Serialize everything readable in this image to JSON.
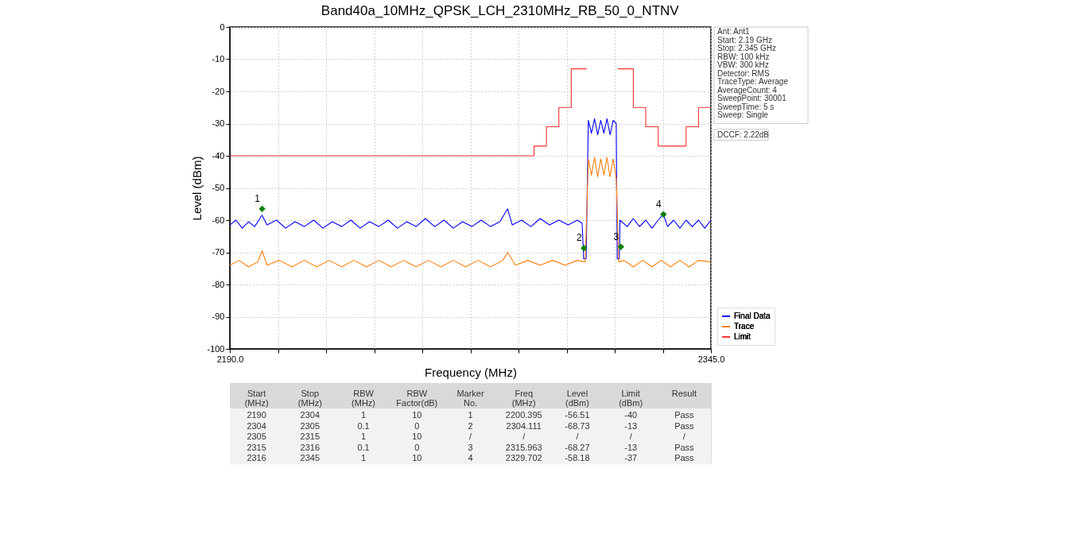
{
  "chart_data": [
    {
      "type": "line",
      "title": "Band40a_10MHz_QPSK_LCH_2310MHz_RB_50_0_NTNV",
      "xlabel": "Frequency (MHz)",
      "ylabel": "Level (dBm)",
      "xlim": [
        2190,
        2345
      ],
      "ylim": [
        -100,
        0
      ],
      "xticks": [
        {
          "value": 2190,
          "label": "2190.0"
        },
        {
          "value": 2205.5,
          "label": null
        },
        {
          "value": 2221,
          "label": null
        },
        {
          "value": 2236.5,
          "label": null
        },
        {
          "value": 2252,
          "label": null
        },
        {
          "value": 2267.5,
          "label": null
        },
        {
          "value": 2283,
          "label": null
        },
        {
          "value": 2298.5,
          "label": null
        },
        {
          "value": 2314,
          "label": null
        },
        {
          "value": 2329.5,
          "label": null
        },
        {
          "value": 2345,
          "label": "2345.0"
        }
      ],
      "yticks": [
        -100,
        -90,
        -80,
        -70,
        -60,
        -50,
        -40,
        -30,
        -20,
        -10,
        0
      ],
      "grid": true,
      "legend": "bottom right",
      "series": [
        {
          "name": "Final Data",
          "color": "#0000ff",
          "x": [
            2190,
            2192,
            2194,
            2196,
            2198,
            2200,
            2200.4,
            2202,
            2205,
            2208,
            2211,
            2214,
            2217,
            2220,
            2223,
            2226,
            2229,
            2232,
            2235,
            2238,
            2241,
            2244,
            2247,
            2250,
            2253,
            2256,
            2259,
            2262,
            2265,
            2268,
            2271,
            2274,
            2277,
            2279.5,
            2281,
            2284,
            2287,
            2290,
            2293,
            2296,
            2299,
            2302,
            2303.5,
            2304,
            2304.8,
            2305.5,
            2306.5,
            2307.5,
            2308.5,
            2309.5,
            2310.5,
            2311.5,
            2312.5,
            2313.5,
            2314.5,
            2314.8,
            2315.5,
            2315.7,
            2318,
            2320,
            2322,
            2324,
            2326,
            2328,
            2329.7,
            2331,
            2333,
            2335,
            2337,
            2339,
            2341,
            2343,
            2345
          ],
          "values": [
            -61.5,
            -60,
            -62.5,
            -60.5,
            -62,
            -59,
            -58.5,
            -61.5,
            -60,
            -62.5,
            -60.5,
            -62,
            -60,
            -62.5,
            -60.5,
            -62,
            -60,
            -62.5,
            -60.5,
            -62,
            -60,
            -62.5,
            -60.5,
            -62,
            -59.5,
            -62,
            -60,
            -62.5,
            -60.5,
            -62,
            -60,
            -62,
            -60.5,
            -56.5,
            -61.5,
            -60,
            -62,
            -59.5,
            -61.5,
            -60,
            -61.5,
            -60,
            -61,
            -72,
            -72,
            -29,
            -33,
            -28.5,
            -33.5,
            -29,
            -33,
            -28.5,
            -33.5,
            -29,
            -30,
            -72,
            -72,
            -60,
            -62,
            -59.5,
            -62,
            -60,
            -62.5,
            -60,
            -58.2,
            -62,
            -60,
            -62.5,
            -60,
            -62,
            -60,
            -62.5,
            -60
          ]
        },
        {
          "name": "Trace",
          "color": "#ff7f0e",
          "x": [
            2190,
            2193,
            2196,
            2199,
            2200.4,
            2202,
            2206,
            2210,
            2214,
            2218,
            2222,
            2226,
            2230,
            2234,
            2238,
            2242,
            2246,
            2250,
            2254,
            2258,
            2262,
            2266,
            2270,
            2274,
            2278,
            2279.5,
            2282,
            2286,
            2290,
            2294,
            2298,
            2302,
            2304.5,
            2305.5,
            2306.5,
            2307.5,
            2308.5,
            2309.5,
            2310.5,
            2311.5,
            2312.5,
            2313.5,
            2314.5,
            2315.3,
            2317,
            2320,
            2323,
            2326,
            2329,
            2332,
            2335,
            2338,
            2341,
            2345
          ],
          "values": [
            -74,
            -72.5,
            -74.5,
            -73,
            -69.5,
            -74,
            -72.5,
            -74.5,
            -72.5,
            -74.5,
            -72.5,
            -74.5,
            -72.5,
            -74.5,
            -72.5,
            -74.5,
            -72.5,
            -74.5,
            -72.5,
            -74.5,
            -72.5,
            -74.5,
            -72.5,
            -74.5,
            -72.5,
            -70,
            -74,
            -72.5,
            -74,
            -72.5,
            -74,
            -72.5,
            -73,
            -41,
            -46,
            -40.5,
            -46.5,
            -41,
            -46,
            -40.5,
            -46.5,
            -41,
            -47,
            -73,
            -72.5,
            -74.5,
            -72.5,
            -74.5,
            -72.5,
            -74.5,
            -72.5,
            -74.5,
            -72.5,
            -73
          ]
        },
        {
          "name": "Limit",
          "color": "#ff3333",
          "x": [
            2190,
            2288,
            2288,
            2292,
            2292,
            2296,
            2296,
            2300,
            2300,
            2305,
            2310,
            2315,
            2320,
            2320,
            2324,
            2324,
            2328,
            2328,
            2337,
            2337,
            2341,
            2341,
            2345
          ],
          "values": [
            -40,
            -40,
            -37,
            -37,
            -31,
            -31,
            -25,
            -25,
            -13,
            -13,
            null,
            -13,
            -13,
            -25,
            -25,
            -31,
            -31,
            -37,
            -37,
            -31,
            -31,
            -25,
            -25
          ]
        },
        {
          "type": "scatter",
          "marker": "diamond",
          "color": "#008000",
          "x": [
            2200.4,
            2304.1,
            2316.0,
            2329.7
          ],
          "values": [
            -56.5,
            -68.7,
            -68.3,
            -58.2
          ]
        }
      ],
      "annotations": [
        "Ant: Ant1",
        "Start: 2.19 GHz",
        "Stop: 2.345 GHz",
        "RBW: 100 kHz",
        "VBW: 300 kHz",
        "Detector: RMS",
        "TraceType: Average",
        "AverageCount: 4",
        "SweepPoint: 30001",
        "SweepTime: 5 s",
        "Sweep: Single",
        "DCCF: 2.22dB",
        "Start (MHz)",
        "Stop (MHz)",
        "RBW (MHz)",
        "RBW Factor(dB)",
        "Marker No.",
        "Freq (MHz)",
        "Level (dBm)",
        "Limit (dBm)",
        "Result",
        "2190",
        "2304",
        "1",
        "10",
        "1",
        "2200.395",
        "-56.51",
        "-40",
        "Pass",
        "2304",
        "2305",
        "0.1",
        "0",
        "2",
        "2304.111",
        "-68.73",
        "-13",
        "Pass",
        "2305",
        "2315",
        "1",
        "10",
        "/",
        "/",
        "/",
        "/",
        "/",
        "2315",
        "2316",
        "0.1",
        "0",
        "3",
        "2315.963",
        "-68.27",
        "-13",
        "Pass",
        "2316",
        "2345",
        "1",
        "10",
        "4",
        "2329.702",
        "-58.18",
        "-37",
        "Pass",
        {
          "text": "1",
          "x": 2200.4,
          "y": -56.5
        },
        {
          "text": "2",
          "x": 2304.1,
          "y": -68.7
        },
        {
          "text": "3",
          "x": 2316.0,
          "y": -68.3
        },
        {
          "text": "4",
          "x": 2329.7,
          "y": -58.2
        }
      ]
    }
  ]
}
